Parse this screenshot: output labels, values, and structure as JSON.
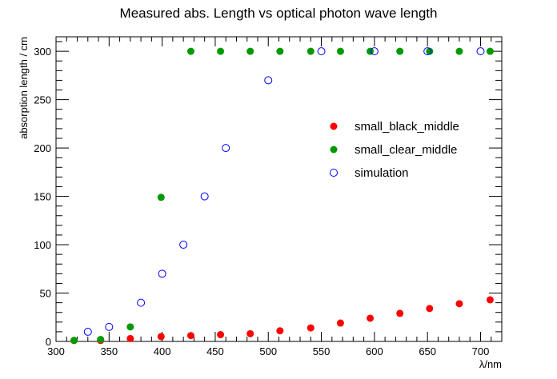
{
  "chart_data": {
    "type": "scatter",
    "title": "Measured abs. Length vs optical photon wave length",
    "xlabel": "λ/nm",
    "ylabel": "absorption length / cm",
    "xlim": [
      300,
      720
    ],
    "ylim": [
      0,
      315
    ],
    "x_ticks": [
      300,
      350,
      400,
      450,
      500,
      550,
      600,
      650,
      700
    ],
    "y_ticks": [
      0,
      50,
      100,
      150,
      200,
      250,
      300
    ],
    "grid": false,
    "legend_position": "right",
    "series": [
      {
        "name": "small_black_middle",
        "marker": "filled-circle",
        "color": "#ff0000",
        "points": [
          {
            "x": 317,
            "y": 1
          },
          {
            "x": 342,
            "y": 1
          },
          {
            "x": 370,
            "y": 3
          },
          {
            "x": 399,
            "y": 5
          },
          {
            "x": 427,
            "y": 6
          },
          {
            "x": 455,
            "y": 7
          },
          {
            "x": 483,
            "y": 8
          },
          {
            "x": 511,
            "y": 11
          },
          {
            "x": 540,
            "y": 14
          },
          {
            "x": 568,
            "y": 19
          },
          {
            "x": 596,
            "y": 24
          },
          {
            "x": 624,
            "y": 29
          },
          {
            "x": 652,
            "y": 34
          },
          {
            "x": 680,
            "y": 39
          },
          {
            "x": 709,
            "y": 43
          }
        ]
      },
      {
        "name": "small_clear_middle",
        "marker": "filled-circle",
        "color": "#009900",
        "points": [
          {
            "x": 317,
            "y": 1
          },
          {
            "x": 342,
            "y": 2
          },
          {
            "x": 370,
            "y": 15
          },
          {
            "x": 399,
            "y": 149
          },
          {
            "x": 427,
            "y": 300
          },
          {
            "x": 455,
            "y": 300
          },
          {
            "x": 483,
            "y": 300
          },
          {
            "x": 511,
            "y": 300
          },
          {
            "x": 540,
            "y": 300
          },
          {
            "x": 568,
            "y": 300
          },
          {
            "x": 596,
            "y": 300
          },
          {
            "x": 624,
            "y": 300
          },
          {
            "x": 652,
            "y": 300
          },
          {
            "x": 680,
            "y": 300
          },
          {
            "x": 709,
            "y": 300
          }
        ]
      },
      {
        "name": "simulation",
        "marker": "open-circle",
        "color": "#0000ff",
        "points": [
          {
            "x": 330,
            "y": 10
          },
          {
            "x": 350,
            "y": 15
          },
          {
            "x": 380,
            "y": 40
          },
          {
            "x": 400,
            "y": 70
          },
          {
            "x": 420,
            "y": 100
          },
          {
            "x": 440,
            "y": 150
          },
          {
            "x": 460,
            "y": 200
          },
          {
            "x": 500,
            "y": 270
          },
          {
            "x": 550,
            "y": 300
          },
          {
            "x": 600,
            "y": 300
          },
          {
            "x": 650,
            "y": 300
          },
          {
            "x": 700,
            "y": 300
          }
        ]
      }
    ]
  }
}
